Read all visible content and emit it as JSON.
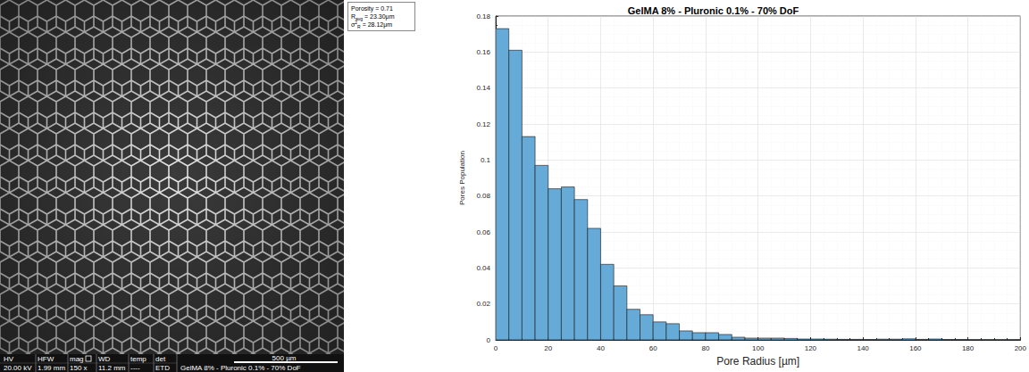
{
  "chart_data": {
    "type": "histogram",
    "title": "GelMA 8% - Pluronic 0.1% - 70% DoF",
    "x_label": "Pore Radius [µm]",
    "y_label": "Pores Population",
    "bins": [
      0,
      5,
      10,
      15,
      20,
      25,
      30,
      35,
      40,
      45,
      50,
      55,
      60,
      65,
      70,
      75,
      80,
      85,
      90,
      95,
      100,
      105,
      110,
      115,
      120,
      125,
      130,
      135,
      140,
      145,
      150,
      155,
      160,
      165,
      170,
      175,
      180,
      185,
      190,
      195,
      200
    ],
    "values": [
      0.173,
      0.161,
      0.113,
      0.097,
      0.084,
      0.085,
      0.078,
      0.062,
      0.042,
      0.03,
      0.017,
      0.014,
      0.01,
      0.009,
      0.005,
      0.004,
      0.004,
      0.003,
      0.0015,
      0.001,
      0.001,
      0.001,
      0.0008,
      0.0005,
      0.0005,
      0.0004,
      0.0003,
      0.0003,
      0.0002,
      0.0004,
      0.0004,
      0.0006,
      0.0003,
      0.0005,
      0.0002,
      0.0002,
      0.0001,
      0.0001,
      0.0001,
      0.0001
    ],
    "color": "#66aad7",
    "xlim": [
      0,
      200
    ],
    "xticks": [
      0,
      20,
      40,
      60,
      80,
      100,
      120,
      140,
      160,
      180,
      200
    ],
    "ylim": [
      0,
      0.18
    ],
    "yticks": [
      0,
      0.02,
      0.04,
      0.06,
      0.08,
      0.1,
      0.12,
      0.14,
      0.16,
      0.18
    ],
    "grid": true,
    "annotations": [
      {
        "symbol": "Porosity",
        "superscript": "",
        "subscript": "",
        "value": "= 0.71"
      },
      {
        "symbol": "R",
        "superscript": "",
        "subscript": "avg",
        "value": "= 23.30μm"
      },
      {
        "symbol": "σ",
        "superscript": "2",
        "subscript": "R",
        "value": "= 28.12μm"
      }
    ]
  },
  "micrograph": {
    "info_labels": [
      "HV",
      "HFW",
      "mag",
      "WD",
      "temp",
      "det"
    ],
    "info_values": [
      "20.00 kV",
      "1.99 mm",
      "150 x",
      "11.2 mm",
      "----",
      "ETD"
    ],
    "scale_bar": "500 µm",
    "caption": "GelMA 8% - Pluronic 0.1% - 70% DoF"
  }
}
